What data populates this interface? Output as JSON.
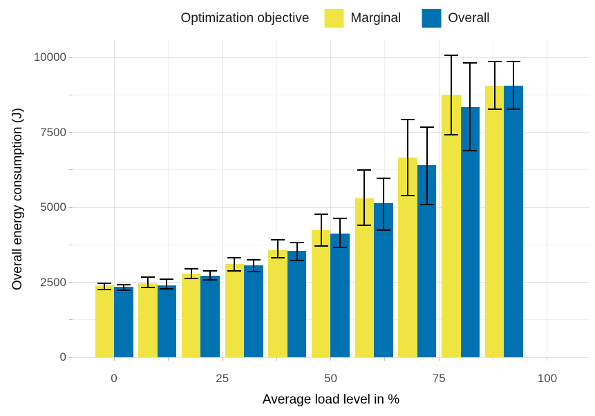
{
  "chart_data": {
    "type": "bar",
    "title": "",
    "xlabel": "Average load level in %",
    "ylabel": "Overall energy consumption (J)",
    "legend": {
      "title": "Optimization objective",
      "position": "top"
    },
    "x": [
      0,
      10,
      20,
      30,
      40,
      50,
      60,
      70,
      80,
      90
    ],
    "series": [
      {
        "name": "Marginal",
        "color": "#F0E442",
        "values": [
          2390,
          2460,
          2800,
          3100,
          3580,
          4230,
          5310,
          6670,
          8750,
          9060
        ],
        "error_low": [
          2270,
          2330,
          2630,
          2870,
          3330,
          3720,
          4410,
          5400,
          7410,
          8280
        ],
        "error_high": [
          2470,
          2670,
          2960,
          3330,
          3910,
          4760,
          6240,
          7930,
          10070,
          9860
        ]
      },
      {
        "name": "Overall",
        "color": "#0072B2",
        "values": [
          2360,
          2400,
          2720,
          3060,
          3540,
          4120,
          5130,
          6400,
          8350,
          9060
        ],
        "error_low": [
          2240,
          2290,
          2580,
          2850,
          3230,
          3670,
          4230,
          5100,
          6880,
          8280
        ],
        "error_high": [
          2430,
          2600,
          2870,
          3260,
          3830,
          4630,
          5980,
          7670,
          9820,
          9860
        ]
      }
    ],
    "x_ticks_major": [
      0,
      25,
      50,
      75,
      100
    ],
    "x_ticks_minor": [
      12.5,
      37.5,
      62.5,
      87.5
    ],
    "y_ticks_major": [
      0,
      2500,
      5000,
      7500,
      10000
    ],
    "y_ticks_minor": [
      1250,
      3750,
      6250,
      8750
    ],
    "x_tick_labels": [
      "0",
      "25",
      "50",
      "75",
      "100"
    ],
    "y_tick_labels": [
      "0",
      "2500",
      "5000",
      "7500",
      "10000"
    ],
    "xlim": [
      -9.57,
      109.73
    ],
    "ylim": [
      0,
      10578
    ],
    "grid": true,
    "error_bar_color": "#000000",
    "axis_text_color": "#4d4d4d",
    "axis_title_color": "#000000"
  }
}
